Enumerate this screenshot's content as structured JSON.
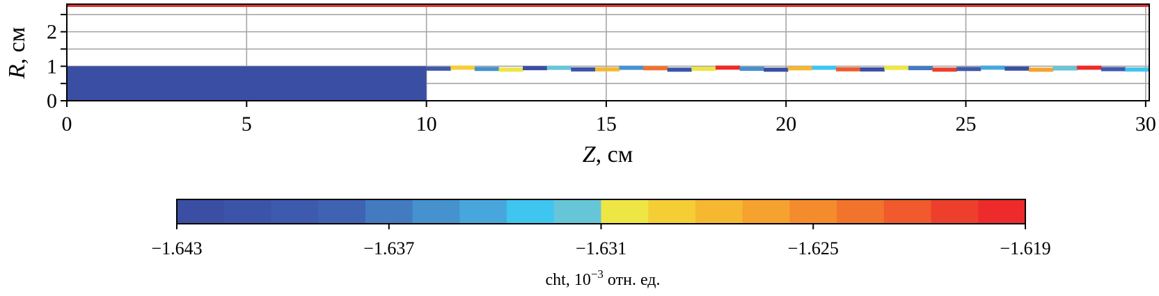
{
  "chart_data": {
    "type": "heatmap",
    "xlabel": {
      "var": "Z",
      "unit": ", см"
    },
    "ylabel": {
      "var": "R",
      "unit": ", см"
    },
    "xlim": [
      0,
      30.1
    ],
    "ylim": [
      0,
      2.8
    ],
    "x_ticks": [
      "0",
      "5",
      "10",
      "15",
      "20",
      "25",
      "30"
    ],
    "x_tick_values": [
      0,
      5,
      10,
      15,
      20,
      25,
      30
    ],
    "y_ticks": [
      "0",
      "1",
      "2"
    ],
    "y_tick_values": [
      0,
      1,
      2
    ],
    "y_grid_values": [
      0.5,
      1,
      1.5,
      2,
      2.5
    ],
    "grid": true,
    "regions": [
      {
        "name": "block",
        "z": [
          0,
          10
        ],
        "r": [
          0,
          1
        ],
        "value": -1.643
      },
      {
        "name": "wall",
        "z": [
          0,
          30.1
        ],
        "r": [
          2.72,
          2.8
        ],
        "value": -1.619
      }
    ],
    "beam": {
      "z_start": 10,
      "z_end": 30.1,
      "r_center": 0.93,
      "values_along_z": [
        -1.64,
        -1.629,
        -1.636,
        -1.63,
        -1.643,
        -1.632,
        -1.641,
        -1.628,
        -1.636,
        -1.624,
        -1.641,
        -1.63,
        -1.62,
        -1.636,
        -1.643,
        -1.628,
        -1.633,
        -1.622,
        -1.642,
        -1.631,
        -1.637,
        -1.621,
        -1.64,
        -1.634,
        -1.643,
        -1.626,
        -1.632,
        -1.619,
        -1.64,
        -1.633
      ]
    },
    "colorbar": {
      "min": -1.643,
      "max": -1.619,
      "ticks": [
        "−1.643",
        "−1.637",
        "−1.631",
        "−1.625",
        "−1.619"
      ],
      "tick_values": [
        -1.643,
        -1.637,
        -1.631,
        -1.625,
        -1.619
      ],
      "colors": [
        "#3a4fa3",
        "#3b54a9",
        "#3d5aae",
        "#3f62b3",
        "#427bc0",
        "#4592cf",
        "#47a7dd",
        "#3ec6f0",
        "#66c6d8",
        "#eee644",
        "#f5cd35",
        "#f5b830",
        "#f5a22f",
        "#f48c2d",
        "#f2732c",
        "#f05a2c",
        "#ee3f2d",
        "#ec2b2a"
      ],
      "label_prefix": "cht, 10",
      "label_exponent": "−3",
      "label_suffix": " отн. ед."
    }
  }
}
